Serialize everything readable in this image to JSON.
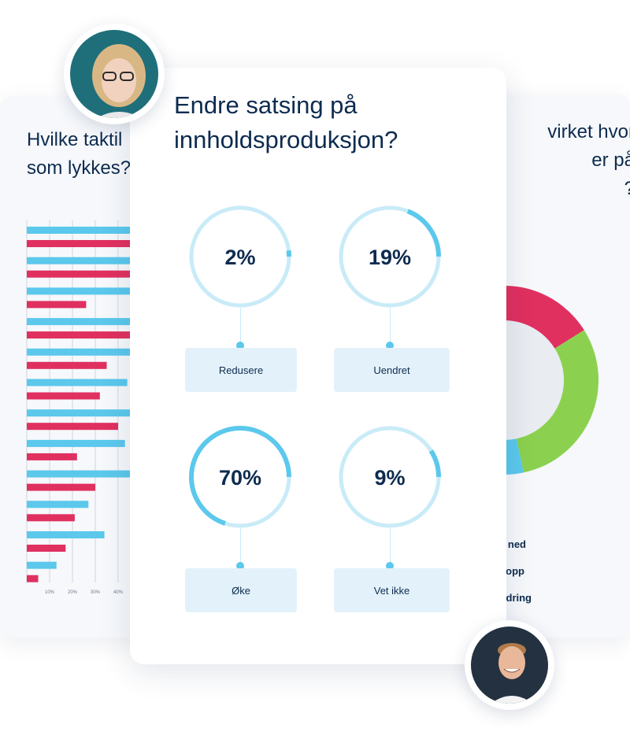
{
  "left_card": {
    "title": "Hvilke taktil\nsom lykkes?",
    "chart_data": {
      "type": "bar",
      "orientation": "horizontal",
      "x_ticks": [
        "",
        "10%",
        "20%",
        "30%",
        "40%"
      ],
      "colors": {
        "series_a": "#5bc8ec",
        "series_b": "#e0305f"
      },
      "pairs": [
        {
          "a": 46,
          "b": 46
        },
        {
          "a": 46,
          "b": 46
        },
        {
          "a": 46,
          "b": 26
        },
        {
          "a": 46,
          "b": 46
        },
        {
          "a": 46,
          "b": 35
        },
        {
          "a": 44,
          "b": 32
        },
        {
          "a": 46,
          "b": 40
        },
        {
          "a": 43,
          "b": 22
        },
        {
          "a": 46,
          "b": 30
        },
        {
          "a": 27,
          "b": 21
        },
        {
          "a": 34,
          "b": 17
        },
        {
          "a": 13,
          "b": 5
        }
      ]
    }
  },
  "right_card": {
    "title": "virket hvor\ner på\n?",
    "chart_data": {
      "type": "pie",
      "style": "donut",
      "colors": {
        "red": "#e0305f",
        "green": "#8bd14f",
        "blue": "#5bc8ec",
        "hole": "#e9ecf1"
      }
    },
    "legend": [
      "ned",
      "opp",
      "dring"
    ]
  },
  "main_card": {
    "title": "Endre satsing på\ninnholdsproduksjon?",
    "chart_data": {
      "type": "pie",
      "style": "progress-ring",
      "colors": {
        "track": "#c9ebf8",
        "fill": "#5bc8ec",
        "connector": "#c9ebf8",
        "dot": "#5bc8ec",
        "box": "#e3f2fa"
      },
      "items": [
        {
          "label": "Redusere",
          "value": 2,
          "display": "2%"
        },
        {
          "label": "Uendret",
          "value": 19,
          "display": "19%"
        },
        {
          "label": "Øke",
          "value": 70,
          "display": "70%"
        },
        {
          "label": "Vet ikke",
          "value": 9,
          "display": "9%"
        }
      ]
    }
  },
  "avatars": {
    "top": "person-woman",
    "bottom": "person-man"
  }
}
